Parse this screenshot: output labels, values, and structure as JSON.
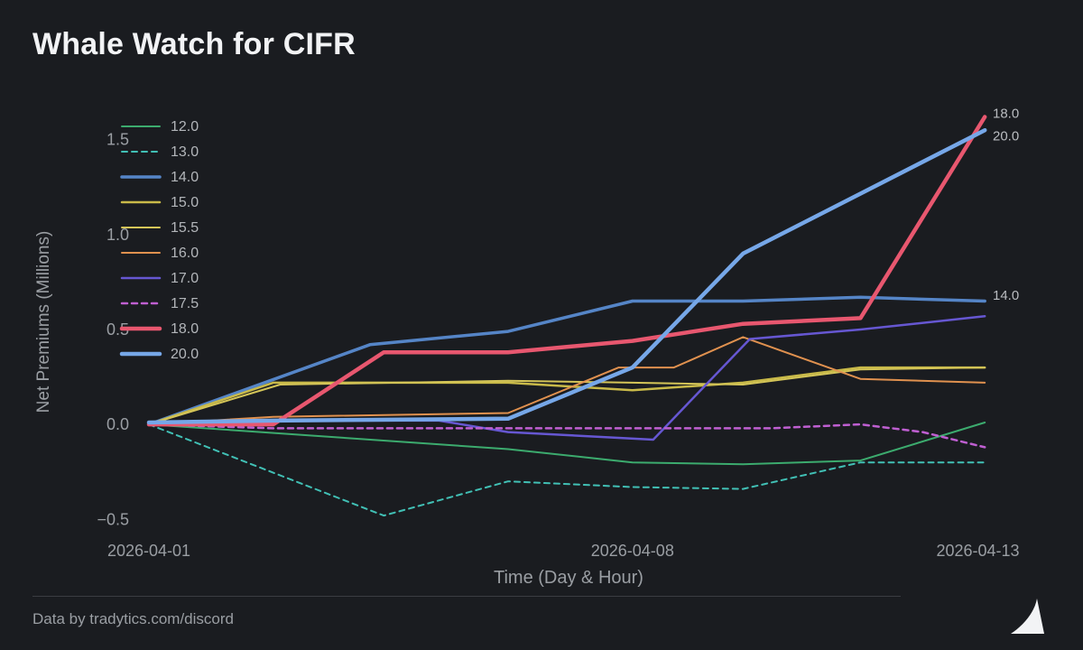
{
  "page": {
    "title": "Whale Watch for CIFR",
    "footer": "Data by tradytics.com/discord",
    "background": "#1a1c20",
    "logo_icon": "tradytics-sail-triangle",
    "text_color": "#9a9ea3",
    "title_color": "#f2f3f5"
  },
  "chart_data": {
    "type": "line",
    "title": "Whale Watch for CIFR",
    "xlabel": "Time (Day & Hour)",
    "ylabel": "Net Premiums (Millions)",
    "x_axis_unit": "days after 2026-04-01",
    "xlim": [
      0,
      12.15
    ],
    "ylim": [
      -0.57,
      1.67
    ],
    "grid": false,
    "legend_position": "top-left-inside",
    "x_ticks": [
      {
        "x": 0,
        "label": "2026-04-01"
      },
      {
        "x": 7,
        "label": "2026-04-08"
      },
      {
        "x": 12,
        "label": "2026-04-13"
      }
    ],
    "y_ticks": [
      {
        "y": -0.5,
        "label": "−0.5"
      },
      {
        "y": 0.0,
        "label": "0.0"
      },
      {
        "y": 0.5,
        "label": "0.5"
      },
      {
        "y": 1.0,
        "label": "1.0"
      },
      {
        "y": 1.5,
        "label": "1.5"
      }
    ],
    "series": [
      {
        "name": "12.0",
        "color": "#3cab6e",
        "width": 2,
        "dash": null,
        "points": [
          [
            0,
            0
          ],
          [
            5.2,
            -0.13
          ],
          [
            7,
            -0.2
          ],
          [
            8.6,
            -0.21
          ],
          [
            10.3,
            -0.19
          ],
          [
            12.1,
            0.01
          ]
        ]
      },
      {
        "name": "13.0",
        "color": "#41c0b5",
        "width": 2,
        "dash": "6,5",
        "points": [
          [
            0,
            0
          ],
          [
            3.4,
            -0.48
          ],
          [
            5.2,
            -0.3
          ],
          [
            7,
            -0.33
          ],
          [
            8.6,
            -0.34
          ],
          [
            10.3,
            -0.2
          ],
          [
            12.1,
            -0.2
          ]
        ]
      },
      {
        "name": "14.0",
        "color": "#5585c7",
        "width": 3.5,
        "dash": null,
        "points": [
          [
            0,
            0
          ],
          [
            3.2,
            0.42
          ],
          [
            5.2,
            0.49
          ],
          [
            7,
            0.65
          ],
          [
            8.6,
            0.65
          ],
          [
            10.3,
            0.67
          ],
          [
            12.1,
            0.65
          ]
        ]
      },
      {
        "name": "15.0",
        "color": "#c9ba49",
        "width": 2.5,
        "dash": null,
        "points": [
          [
            0,
            0
          ],
          [
            1.8,
            0.22
          ],
          [
            5.2,
            0.22
          ],
          [
            7,
            0.18
          ],
          [
            8.6,
            0.22
          ],
          [
            10.3,
            0.3
          ],
          [
            12.1,
            0.3
          ]
        ]
      },
      {
        "name": "15.5",
        "color": "#d4c558",
        "width": 2,
        "dash": null,
        "points": [
          [
            0,
            0
          ],
          [
            1.9,
            0.21
          ],
          [
            5.2,
            0.23
          ],
          [
            7,
            0.22
          ],
          [
            8.6,
            0.21
          ],
          [
            10.3,
            0.29
          ],
          [
            12.1,
            0.3
          ]
        ]
      },
      {
        "name": "16.0",
        "color": "#e0914f",
        "width": 2,
        "dash": null,
        "points": [
          [
            0,
            0
          ],
          [
            1.8,
            0.04
          ],
          [
            5.2,
            0.06
          ],
          [
            6.8,
            0.3
          ],
          [
            7.6,
            0.3
          ],
          [
            8.6,
            0.46
          ],
          [
            10.3,
            0.24
          ],
          [
            12.1,
            0.22
          ]
        ]
      },
      {
        "name": "17.0",
        "color": "#6657d2",
        "width": 2.5,
        "dash": null,
        "points": [
          [
            0,
            0
          ],
          [
            1.8,
            0.02
          ],
          [
            4.2,
            0.02
          ],
          [
            5.2,
            -0.04
          ],
          [
            7.3,
            -0.08
          ],
          [
            8.7,
            0.45
          ],
          [
            10.3,
            0.5
          ],
          [
            12.1,
            0.57
          ]
        ]
      },
      {
        "name": "17.5",
        "color": "#bf5fd1",
        "width": 2.5,
        "dash": "6,5",
        "points": [
          [
            0,
            0
          ],
          [
            1.8,
            -0.02
          ],
          [
            7,
            -0.02
          ],
          [
            9,
            -0.02
          ],
          [
            10.3,
            0.0
          ],
          [
            11.2,
            -0.04
          ],
          [
            12.1,
            -0.12
          ]
        ]
      },
      {
        "name": "18.0",
        "color": "#e8576f",
        "width": 4.5,
        "dash": null,
        "points": [
          [
            0,
            0
          ],
          [
            1.8,
            0.0
          ],
          [
            3.4,
            0.38
          ],
          [
            5.2,
            0.38
          ],
          [
            7,
            0.44
          ],
          [
            8.6,
            0.53
          ],
          [
            10.3,
            0.56
          ],
          [
            12.1,
            1.62
          ]
        ]
      },
      {
        "name": "20.0",
        "color": "#76a7e8",
        "width": 4.5,
        "dash": null,
        "points": [
          [
            0,
            0.01
          ],
          [
            1.8,
            0.02
          ],
          [
            5.2,
            0.03
          ],
          [
            7,
            0.3
          ],
          [
            8.6,
            0.9
          ],
          [
            12.1,
            1.55
          ]
        ]
      }
    ],
    "end_labels": [
      {
        "text": "18.0",
        "value": 1.64
      },
      {
        "text": "20.0",
        "value": 1.52
      },
      {
        "text": "14.0",
        "value": 0.68
      }
    ]
  }
}
